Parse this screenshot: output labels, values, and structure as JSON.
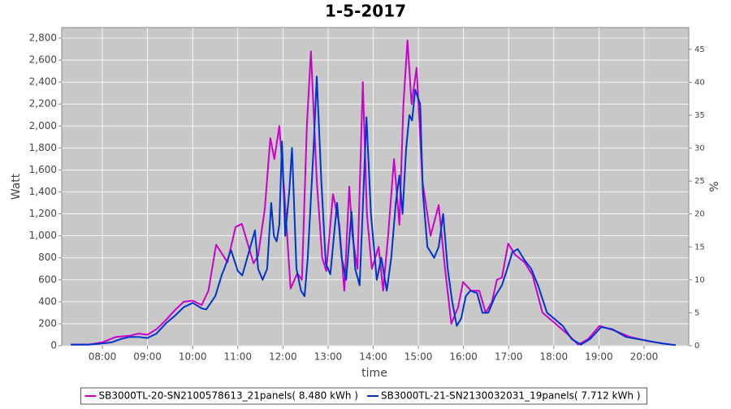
{
  "chart_data": {
    "type": "line",
    "title": "1-5-2017",
    "x_label": "time",
    "y_label": "Watt",
    "y2_label": "%",
    "xlim": [
      7.1,
      20.99
    ],
    "xticks": [
      {
        "value": 8,
        "label": "08:00"
      },
      {
        "value": 9,
        "label": "09:00"
      },
      {
        "value": 10,
        "label": "10:00"
      },
      {
        "value": 11,
        "label": "11:00"
      },
      {
        "value": 12,
        "label": "12:00"
      },
      {
        "value": 13,
        "label": "13:00"
      },
      {
        "value": 14,
        "label": "14:00"
      },
      {
        "value": 15,
        "label": "15:00"
      },
      {
        "value": 16,
        "label": "16:00"
      },
      {
        "value": 17,
        "label": "17:00"
      },
      {
        "value": 18,
        "label": "18:00"
      },
      {
        "value": 19,
        "label": "19:00"
      },
      {
        "value": 20,
        "label": "20:00"
      }
    ],
    "ylim": [
      0,
      2896
    ],
    "yticks": [
      0,
      200,
      400,
      600,
      800,
      {
        "value": 1000,
        "label": "1,000"
      },
      {
        "value": 1200,
        "label": "1,200"
      },
      {
        "value": 1400,
        "label": "1,400"
      },
      {
        "value": 1600,
        "label": "1,600"
      },
      {
        "value": 1800,
        "label": "1,800"
      },
      {
        "value": 2000,
        "label": "2,000"
      },
      {
        "value": 2200,
        "label": "2,200"
      },
      {
        "value": 2400,
        "label": "2,400"
      },
      {
        "value": 2600,
        "label": "2,600"
      },
      {
        "value": 2800,
        "label": "2,800"
      }
    ],
    "y2lim": [
      0,
      48.3
    ],
    "y2ticks": [
      0,
      5,
      10,
      15,
      20,
      25,
      30,
      35,
      40,
      45
    ],
    "grid": true,
    "legend": "bottom",
    "series": [
      {
        "name": "SB3000TL-20-SN2100578613_21panels( 8.480 kWh )",
        "color": "#cc00cc",
        "x": [
          7.3,
          7.7,
          8.0,
          8.3,
          8.6,
          8.8,
          9.0,
          9.2,
          9.4,
          9.6,
          9.8,
          10.0,
          10.2,
          10.35,
          10.52,
          10.77,
          10.95,
          11.09,
          11.24,
          11.35,
          11.45,
          11.6,
          11.72,
          11.81,
          11.92,
          12.03,
          12.17,
          12.32,
          12.42,
          12.53,
          12.62,
          12.75,
          12.87,
          12.96,
          13.11,
          13.25,
          13.36,
          13.47,
          13.54,
          13.65,
          13.77,
          13.86,
          13.97,
          14.12,
          14.22,
          14.33,
          14.46,
          14.58,
          14.67,
          14.76,
          14.85,
          14.96,
          15.09,
          15.27,
          15.45,
          15.59,
          15.73,
          15.88,
          15.99,
          16.17,
          16.35,
          16.49,
          16.63,
          16.74,
          16.85,
          16.99,
          17.14,
          17.35,
          17.53,
          17.75,
          18.04,
          18.32,
          18.54,
          18.76,
          19.01,
          19.33,
          19.69,
          20.12,
          20.59
        ],
        "values": [
          10,
          10,
          30,
          80,
          90,
          110,
          100,
          150,
          230,
          320,
          400,
          410,
          370,
          500,
          920,
          760,
          1080,
          1110,
          900,
          750,
          820,
          1250,
          1890,
          1700,
          2000,
          1400,
          520,
          660,
          600,
          2000,
          2680,
          1500,
          800,
          680,
          1380,
          1100,
          500,
          1450,
          1000,
          700,
          2400,
          1200,
          700,
          900,
          500,
          1000,
          1700,
          1100,
          2200,
          2780,
          2200,
          2530,
          1500,
          1000,
          1280,
          700,
          200,
          350,
          580,
          500,
          500,
          300,
          400,
          600,
          620,
          930,
          830,
          760,
          640,
          300,
          200,
          100,
          10,
          60,
          180,
          140,
          80,
          40,
          10
        ]
      },
      {
        "name": "SB3000TL-21-SN2130032031_19panels( 7.712 kWh )",
        "color": "#0033cc",
        "x": [
          7.3,
          7.7,
          8.0,
          8.2,
          8.4,
          8.6,
          8.8,
          9.0,
          9.2,
          9.4,
          9.6,
          9.8,
          10.0,
          10.2,
          10.3,
          10.5,
          10.65,
          10.7,
          10.85,
          11.0,
          11.1,
          11.25,
          11.38,
          11.45,
          11.55,
          11.65,
          11.74,
          11.8,
          11.86,
          11.92,
          11.98,
          12.05,
          12.14,
          12.2,
          12.3,
          12.4,
          12.48,
          12.55,
          12.68,
          12.75,
          12.85,
          12.95,
          13.05,
          13.2,
          13.3,
          13.4,
          13.52,
          13.6,
          13.7,
          13.85,
          13.95,
          14.08,
          14.18,
          14.3,
          14.4,
          14.5,
          14.58,
          14.65,
          14.73,
          14.8,
          14.86,
          14.93,
          15.04,
          15.1,
          15.2,
          15.35,
          15.45,
          15.55,
          15.65,
          15.75,
          15.85,
          15.95,
          16.05,
          16.15,
          16.3,
          16.42,
          16.55,
          16.7,
          16.85,
          16.97,
          17.08,
          17.2,
          17.35,
          17.5,
          17.65,
          17.85,
          18.0,
          18.2,
          18.4,
          18.6,
          18.8,
          19.05,
          19.3,
          19.6,
          20.0,
          20.4,
          20.7
        ],
        "values": [
          10,
          10,
          20,
          30,
          60,
          80,
          80,
          70,
          110,
          200,
          270,
          350,
          390,
          340,
          330,
          450,
          650,
          700,
          870,
          680,
          640,
          860,
          1050,
          700,
          600,
          700,
          1300,
          1000,
          950,
          1100,
          1860,
          1000,
          1400,
          1800,
          700,
          500,
          450,
          800,
          1800,
          2450,
          1500,
          750,
          650,
          1300,
          800,
          600,
          1220,
          700,
          550,
          2080,
          1200,
          600,
          800,
          500,
          800,
          1300,
          1550,
          1200,
          1800,
          2100,
          2050,
          2330,
          2200,
          1400,
          900,
          800,
          900,
          1200,
          700,
          400,
          180,
          250,
          450,
          500,
          480,
          300,
          300,
          450,
          550,
          700,
          850,
          880,
          780,
          700,
          550,
          300,
          250,
          180,
          60,
          10,
          60,
          170,
          150,
          80,
          50,
          20,
          5
        ]
      }
    ]
  }
}
